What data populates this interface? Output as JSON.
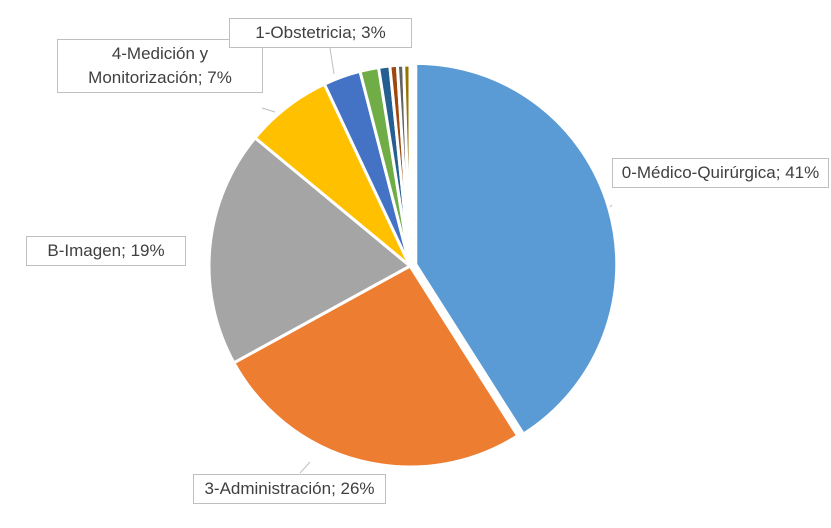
{
  "chart_data": {
    "type": "pie",
    "categories": [
      "0-Médico-Quirúrgica",
      "3-Administración",
      "B-Imagen",
      "4-Medición y Monitorización",
      "1-Obstetricia",
      null,
      null,
      null,
      null,
      null
    ],
    "values": [
      41,
      26,
      19,
      7,
      3,
      1.5,
      0.9,
      0.6,
      0.5,
      0.5
    ],
    "value_labels": [
      "41%",
      "26%",
      "19%",
      "7%",
      "3%",
      null,
      null,
      null,
      null,
      null
    ],
    "label_separator": "; ",
    "colors": [
      "#5b9bd5",
      "#ed7d31",
      "#a5a5a5",
      "#ffc000",
      "#4472c4",
      "#70ad47",
      "#255e91",
      "#9e480e",
      "#636363",
      "#997300"
    ]
  }
}
